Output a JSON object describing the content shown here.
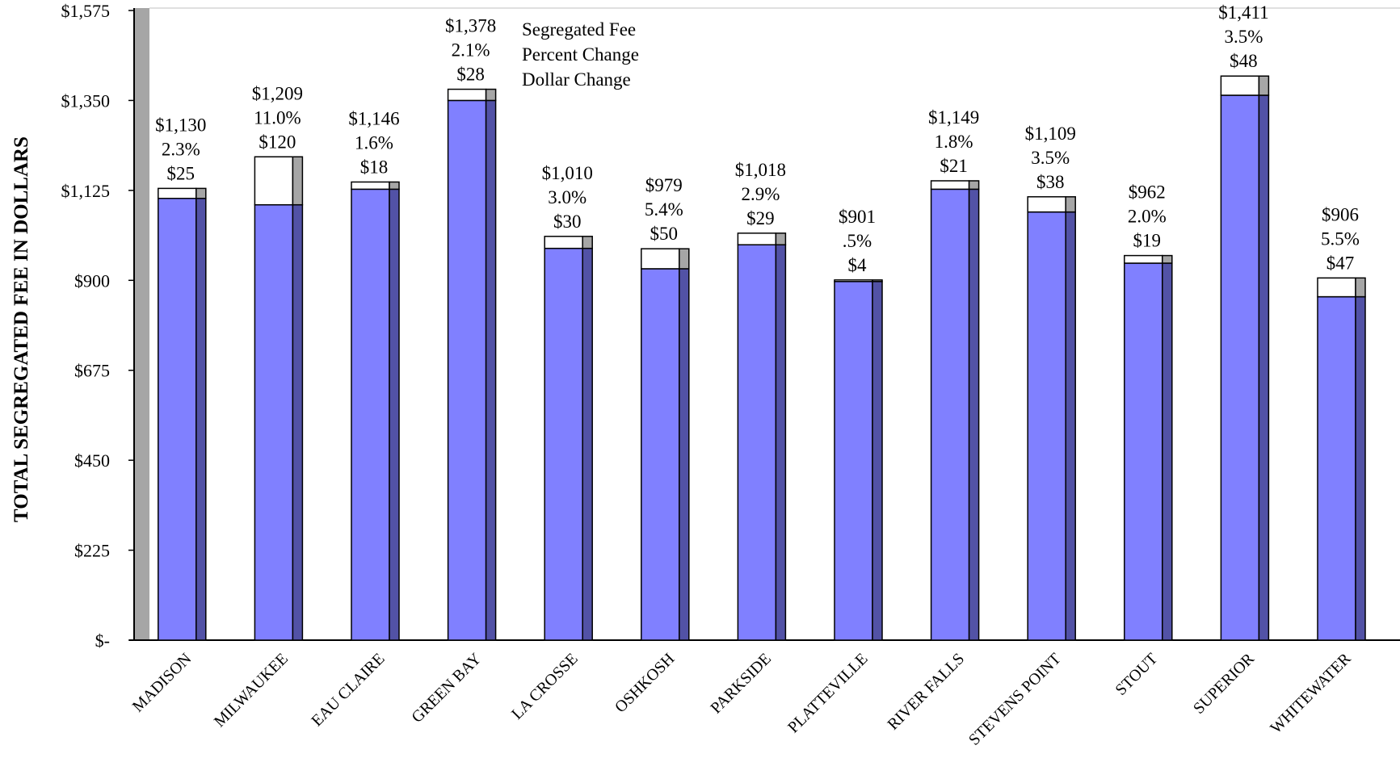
{
  "chart_data": {
    "type": "bar",
    "ylabel": "TOTAL SEGREGATED FEE IN DOLLARS",
    "ylim": [
      0,
      1575
    ],
    "yticks": [
      "$-",
      "$225",
      "$450",
      "$675",
      "$900",
      "$1,125",
      "$1,350",
      "$1,575"
    ],
    "ytick_values": [
      0,
      225,
      450,
      675,
      900,
      1125,
      1350,
      1575
    ],
    "legend": [
      "Segregated Fee",
      "Percent Change",
      "Dollar Change"
    ],
    "categories": [
      "MADISON",
      "MILWAUKEE",
      "EAU CLAIRE",
      "GREEN BAY",
      "LA CROSSE",
      "OSHKOSH",
      "PARKSIDE",
      "PLATTEVILLE",
      "RIVER FALLS",
      "STEVENS POINT",
      "STOUT",
      "SUPERIOR",
      "WHITEWATER"
    ],
    "fees": [
      1130,
      1209,
      1146,
      1378,
      1010,
      979,
      1018,
      901,
      1149,
      1109,
      962,
      1411,
      906
    ],
    "dollar_change": [
      25,
      120,
      18,
      28,
      30,
      50,
      29,
      4,
      21,
      38,
      19,
      48,
      47
    ],
    "fee_labels": [
      "$1,130",
      "$1,209",
      "$1,146",
      "$1,378",
      "$1,010",
      "$979",
      "$1,018",
      "$901",
      "$1,149",
      "$1,109",
      "$962",
      "$1,411",
      "$906"
    ],
    "pct_labels": [
      "2.3%",
      "11.0%",
      "1.6%",
      "2.1%",
      "3.0%",
      "5.4%",
      "2.9%",
      ".5%",
      "1.8%",
      "3.5%",
      "2.0%",
      "3.5%",
      "5.5%"
    ],
    "dollar_labels": [
      "$25",
      "$120",
      "$18",
      "$28",
      "$30",
      "$50",
      "$29",
      "$4",
      "$21",
      "$38",
      "$19",
      "$48",
      "$47"
    ],
    "colors": {
      "base": "#8080ff",
      "base_side": "#5252a6",
      "change": "#ffffff",
      "change_side": "#a6a6a6",
      "wall": "#a6a6a6"
    }
  }
}
